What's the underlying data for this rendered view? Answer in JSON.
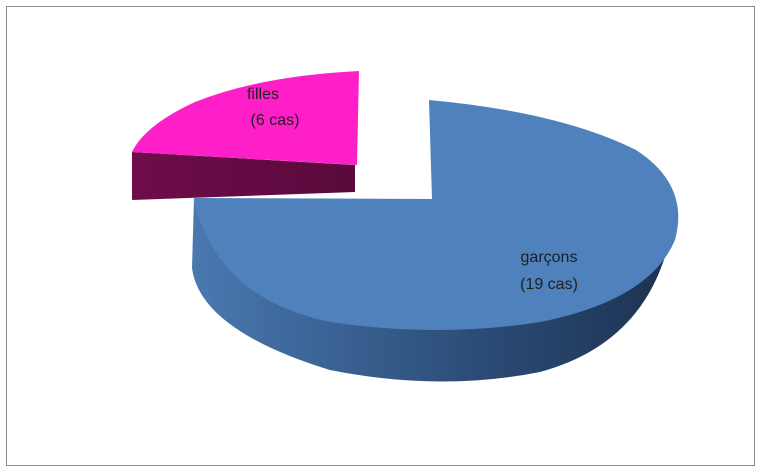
{
  "chart_data": {
    "type": "pie",
    "style": "3d-exploded",
    "title": "",
    "legend": "none",
    "slices": [
      {
        "category": "garçons",
        "value": 19,
        "label_line1": "garçons",
        "label_line2": "(19 cas)",
        "color": "#4f81bd",
        "side_color": "#2c4e78"
      },
      {
        "category": "filles",
        "value": 6,
        "label_line1": "filles",
        "label_line2": "(6 cas)",
        "color": "#ff1fc8",
        "side_color": "#650b44"
      }
    ]
  }
}
